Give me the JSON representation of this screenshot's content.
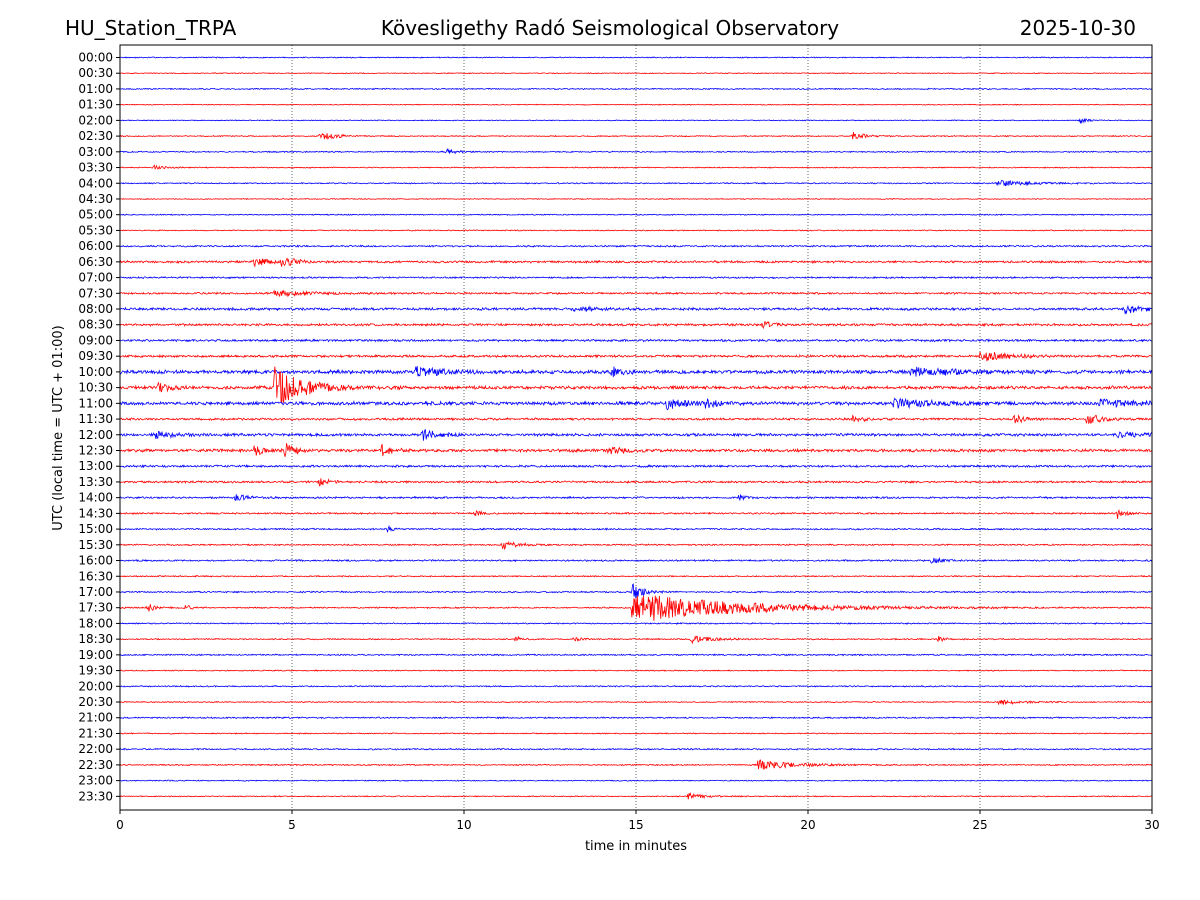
{
  "chart_data": {
    "type": "line",
    "title_left": "HU_Station_TRPA",
    "title": "Kövesligethy Radó Seismological Observatory",
    "title_right": "2025-10-30",
    "xlabel": "time in minutes",
    "ylabel": "UTC (local time = UTC + 01:00)",
    "xlim": [
      0,
      30
    ],
    "x_ticks": [
      0,
      5,
      10,
      15,
      20,
      25,
      30
    ],
    "x_tick_labels": [
      "0",
      "5",
      "10",
      "15",
      "20",
      "25",
      "30"
    ],
    "x_grid": [
      5,
      10,
      15,
      20,
      25
    ],
    "trace_colors": [
      "#0000ff",
      "#ff0000"
    ],
    "rows": [
      {
        "label": "00:00",
        "noise": 0.6,
        "events": []
      },
      {
        "label": "00:30",
        "noise": 0.5,
        "events": []
      },
      {
        "label": "01:00",
        "noise": 0.7,
        "events": []
      },
      {
        "label": "01:30",
        "noise": 0.5,
        "events": []
      },
      {
        "label": "02:00",
        "noise": 0.5,
        "events": [
          {
            "t": 27.9,
            "amp": 3,
            "dur": 0.3
          }
        ]
      },
      {
        "label": "02:30",
        "noise": 0.6,
        "events": [
          {
            "t": 5.8,
            "amp": 4,
            "dur": 0.8
          },
          {
            "t": 21.3,
            "amp": 5,
            "dur": 0.5
          }
        ]
      },
      {
        "label": "03:00",
        "noise": 0.7,
        "events": [
          {
            "t": 9.5,
            "amp": 3,
            "dur": 0.4
          }
        ]
      },
      {
        "label": "03:30",
        "noise": 0.6,
        "events": [
          {
            "t": 1.0,
            "amp": 2,
            "dur": 0.5
          }
        ]
      },
      {
        "label": "04:00",
        "noise": 0.7,
        "events": [
          {
            "t": 25.5,
            "amp": 3,
            "dur": 1.5
          }
        ]
      },
      {
        "label": "04:30",
        "noise": 0.5,
        "events": []
      },
      {
        "label": "05:00",
        "noise": 0.6,
        "events": []
      },
      {
        "label": "05:30",
        "noise": 0.6,
        "events": []
      },
      {
        "label": "06:00",
        "noise": 0.9,
        "events": []
      },
      {
        "label": "06:30",
        "noise": 1.2,
        "events": [
          {
            "t": 3.9,
            "amp": 5,
            "dur": 0.6
          },
          {
            "t": 4.7,
            "amp": 5,
            "dur": 0.6
          }
        ]
      },
      {
        "label": "07:00",
        "noise": 0.9,
        "events": []
      },
      {
        "label": "07:30",
        "noise": 1.0,
        "events": [
          {
            "t": 4.5,
            "amp": 3,
            "dur": 1.5
          }
        ]
      },
      {
        "label": "08:00",
        "noise": 1.4,
        "events": [
          {
            "t": 13.2,
            "amp": 3,
            "dur": 0.8
          },
          {
            "t": 29.2,
            "amp": 4,
            "dur": 0.8
          }
        ]
      },
      {
        "label": "08:30",
        "noise": 1.3,
        "events": [
          {
            "t": 18.7,
            "amp": 5,
            "dur": 0.4
          }
        ]
      },
      {
        "label": "09:00",
        "noise": 1.2,
        "events": []
      },
      {
        "label": "09:30",
        "noise": 1.3,
        "events": [
          {
            "t": 25.0,
            "amp": 5,
            "dur": 1.2
          }
        ]
      },
      {
        "label": "10:00",
        "noise": 2.0,
        "events": [
          {
            "t": 8.6,
            "amp": 5,
            "dur": 1.2
          },
          {
            "t": 14.3,
            "amp": 5,
            "dur": 0.4
          },
          {
            "t": 23.0,
            "amp": 4,
            "dur": 2.0
          }
        ]
      },
      {
        "label": "10:30",
        "noise": 1.8,
        "events": [
          {
            "t": 4.5,
            "amp": 20,
            "dur": 1.3
          },
          {
            "t": 1.1,
            "amp": 5,
            "dur": 0.5
          }
        ]
      },
      {
        "label": "11:00",
        "noise": 1.9,
        "events": [
          {
            "t": 15.9,
            "amp": 6,
            "dur": 0.8
          },
          {
            "t": 17.0,
            "amp": 5,
            "dur": 0.5
          },
          {
            "t": 22.5,
            "amp": 5,
            "dur": 1.5
          },
          {
            "t": 28.5,
            "amp": 4,
            "dur": 1.5
          }
        ]
      },
      {
        "label": "11:30",
        "noise": 1.2,
        "events": [
          {
            "t": 21.3,
            "amp": 4,
            "dur": 0.4
          },
          {
            "t": 26.0,
            "amp": 5,
            "dur": 0.4
          },
          {
            "t": 28.1,
            "amp": 6,
            "dur": 0.6
          }
        ]
      },
      {
        "label": "12:00",
        "noise": 1.5,
        "events": [
          {
            "t": 8.8,
            "amp": 6,
            "dur": 0.6
          },
          {
            "t": 1.0,
            "amp": 3,
            "dur": 1.0
          },
          {
            "t": 29.0,
            "amp": 3,
            "dur": 1.0
          }
        ]
      },
      {
        "label": "12:30",
        "noise": 1.6,
        "events": [
          {
            "t": 3.9,
            "amp": 5,
            "dur": 0.5
          },
          {
            "t": 4.8,
            "amp": 7,
            "dur": 0.4
          },
          {
            "t": 7.6,
            "amp": 7,
            "dur": 0.4
          },
          {
            "t": 14.2,
            "amp": 3,
            "dur": 0.8
          }
        ]
      },
      {
        "label": "13:00",
        "noise": 1.2,
        "events": []
      },
      {
        "label": "13:30",
        "noise": 1.1,
        "events": [
          {
            "t": 5.8,
            "amp": 4,
            "dur": 0.4
          }
        ]
      },
      {
        "label": "14:00",
        "noise": 1.0,
        "events": [
          {
            "t": 3.3,
            "amp": 4,
            "dur": 0.6
          },
          {
            "t": 18.0,
            "amp": 3,
            "dur": 0.3
          }
        ]
      },
      {
        "label": "14:30",
        "noise": 0.9,
        "events": [
          {
            "t": 10.3,
            "amp": 3,
            "dur": 0.3
          },
          {
            "t": 29.0,
            "amp": 5,
            "dur": 0.3
          }
        ]
      },
      {
        "label": "15:00",
        "noise": 0.9,
        "events": [
          {
            "t": 7.8,
            "amp": 4,
            "dur": 0.2
          }
        ]
      },
      {
        "label": "15:30",
        "noise": 0.8,
        "events": [
          {
            "t": 11.1,
            "amp": 4,
            "dur": 0.8
          }
        ]
      },
      {
        "label": "16:00",
        "noise": 0.9,
        "events": [
          {
            "t": 23.6,
            "amp": 3,
            "dur": 0.5
          }
        ]
      },
      {
        "label": "16:30",
        "noise": 0.7,
        "events": []
      },
      {
        "label": "17:00",
        "noise": 0.8,
        "events": [
          {
            "t": 14.9,
            "amp": 8,
            "dur": 0.5
          }
        ]
      },
      {
        "label": "17:30",
        "noise": 0.8,
        "events": [
          {
            "t": 14.9,
            "amp": 16,
            "dur": 4.5
          },
          {
            "t": 0.8,
            "amp": 5,
            "dur": 0.3
          },
          {
            "t": 1.9,
            "amp": 3,
            "dur": 0.3
          }
        ]
      },
      {
        "label": "18:00",
        "noise": 0.7,
        "events": []
      },
      {
        "label": "18:30",
        "noise": 0.7,
        "events": [
          {
            "t": 11.5,
            "amp": 3,
            "dur": 0.3
          },
          {
            "t": 13.2,
            "amp": 3,
            "dur": 0.3
          },
          {
            "t": 16.6,
            "amp": 4,
            "dur": 0.8
          },
          {
            "t": 23.8,
            "amp": 3,
            "dur": 0.3
          }
        ]
      },
      {
        "label": "19:00",
        "noise": 0.8,
        "events": []
      },
      {
        "label": "19:30",
        "noise": 0.6,
        "events": []
      },
      {
        "label": "20:00",
        "noise": 0.7,
        "events": []
      },
      {
        "label": "20:30",
        "noise": 0.6,
        "events": [
          {
            "t": 25.5,
            "amp": 3,
            "dur": 1.0
          }
        ]
      },
      {
        "label": "21:00",
        "noise": 0.8,
        "events": []
      },
      {
        "label": "21:30",
        "noise": 0.6,
        "events": []
      },
      {
        "label": "22:00",
        "noise": 0.8,
        "events": []
      },
      {
        "label": "22:30",
        "noise": 0.7,
        "events": [
          {
            "t": 18.5,
            "amp": 5,
            "dur": 1.6
          }
        ]
      },
      {
        "label": "23:00",
        "noise": 0.6,
        "events": []
      },
      {
        "label": "23:30",
        "noise": 0.6,
        "events": [
          {
            "t": 16.5,
            "amp": 3,
            "dur": 0.8
          }
        ]
      }
    ]
  }
}
